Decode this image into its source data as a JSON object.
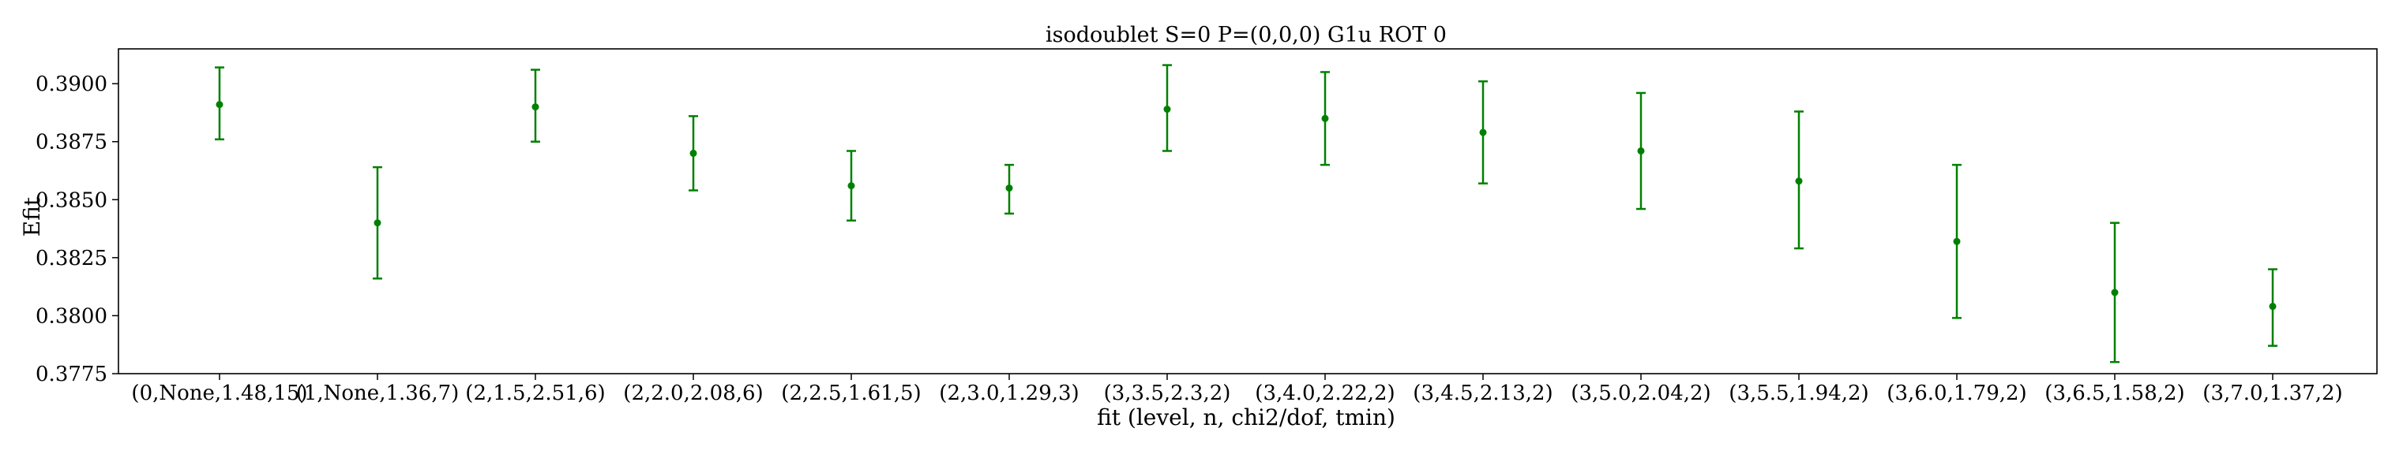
{
  "chart_data": {
    "type": "scatter",
    "title": "isodoublet S=0 P=(0,0,0) G1u ROT 0",
    "xlabel": "fit (level, n, chi2/dof, tmin)",
    "ylabel": "Efit",
    "ylim": [
      0.3775,
      0.3915
    ],
    "yticks": [
      "0.3775",
      "0.3800",
      "0.3825",
      "0.3850",
      "0.3875",
      "0.3900"
    ],
    "grid": false,
    "marker_color": "#008000",
    "categories": [
      "(0,None,1.48,15)",
      "(1,None,1.36,7)",
      "(2,1.5,2.51,6)",
      "(2,2.0,2.08,6)",
      "(2,2.5,1.61,5)",
      "(2,3.0,1.29,3)",
      "(3,3.5,2.3,2)",
      "(3,4.0,2.22,2)",
      "(3,4.5,2.13,2)",
      "(3,5.0,2.04,2)",
      "(3,5.5,1.94,2)",
      "(3,6.0,1.79,2)",
      "(3,6.5,1.58,2)",
      "(3,7.0,1.37,2)"
    ],
    "series": [
      {
        "values": [
          0.3891,
          0.384,
          0.389,
          0.387,
          0.3856,
          0.3855,
          0.3889,
          0.3885,
          0.3879,
          0.3871,
          0.3858,
          0.3832,
          0.381,
          0.3804
        ],
        "err_low": [
          0.3876,
          0.3816,
          0.3875,
          0.3854,
          0.3841,
          0.3844,
          0.3871,
          0.3865,
          0.3857,
          0.3846,
          0.3829,
          0.3799,
          0.378,
          0.3787
        ],
        "err_high": [
          0.3907,
          0.3864,
          0.3906,
          0.3886,
          0.3871,
          0.3865,
          0.3908,
          0.3905,
          0.3901,
          0.3896,
          0.3888,
          0.3865,
          0.384,
          0.382
        ]
      }
    ]
  }
}
